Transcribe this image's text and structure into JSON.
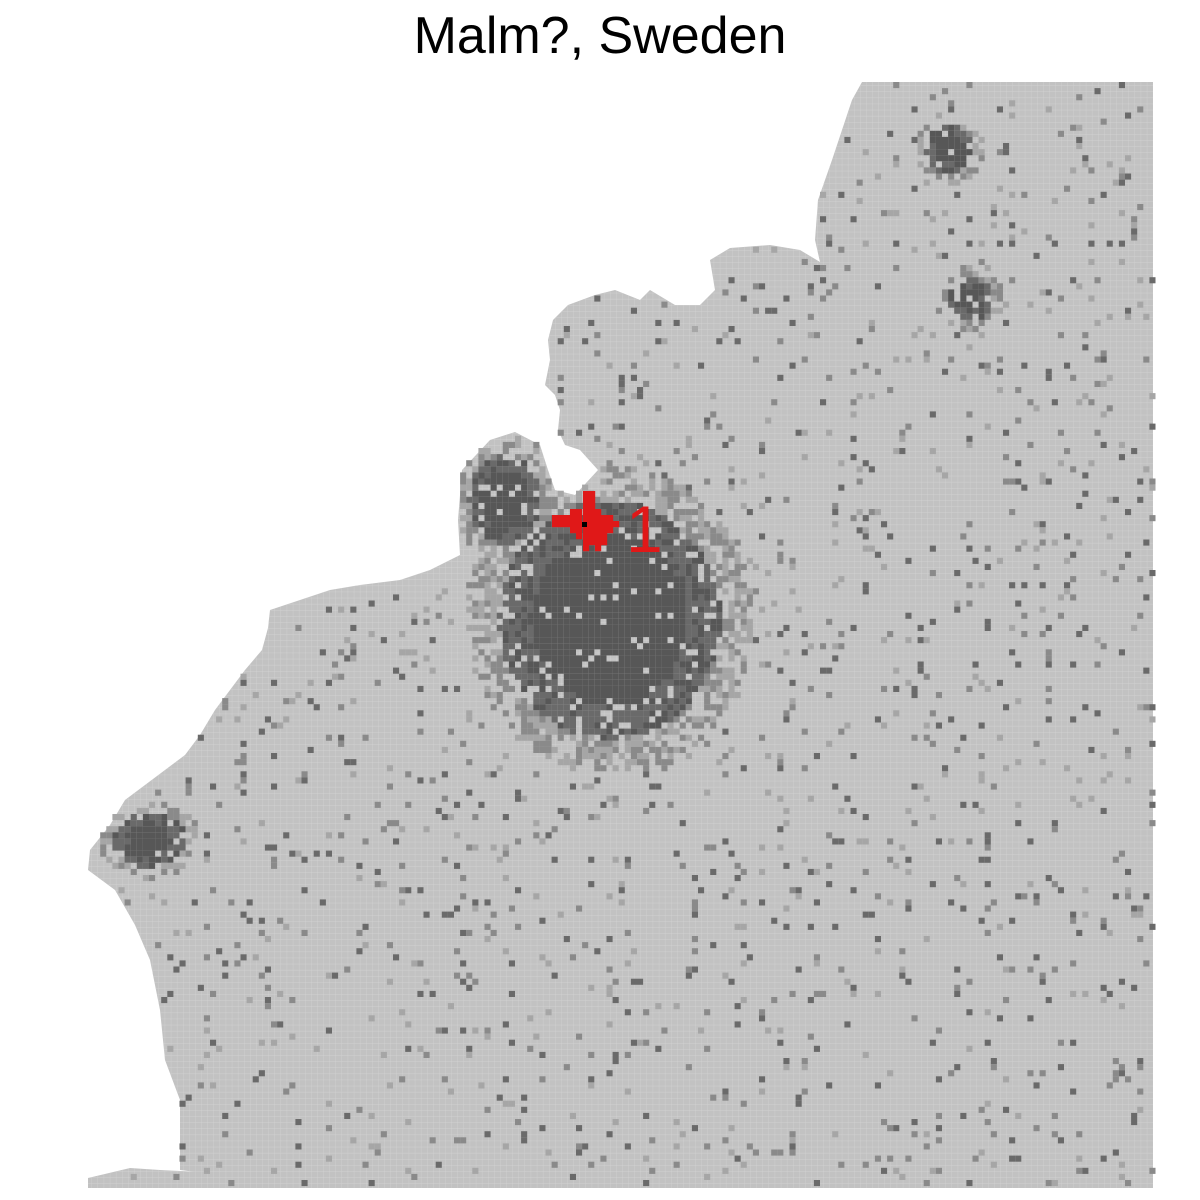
{
  "title": "Malm?, Sweden",
  "map": {
    "land_color": "#c2c2c2",
    "grid_line_color": "#d6d6d6",
    "density_colors": [
      "#a6a6a6",
      "#8a8a8a",
      "#6a6a6a",
      "#575757"
    ],
    "highlight_color": "#e01818"
  },
  "markers": [
    {
      "id": "1",
      "label": "1",
      "color": "#e01818"
    }
  ]
}
